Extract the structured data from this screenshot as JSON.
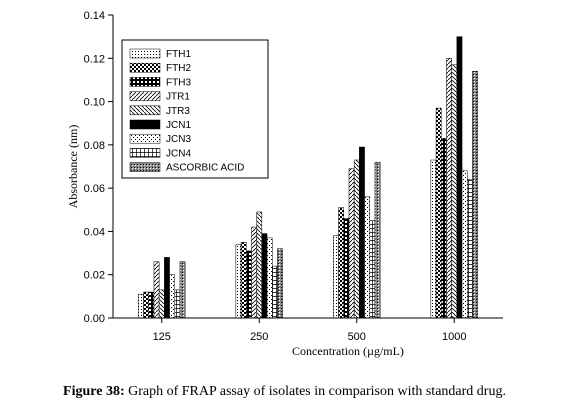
{
  "caption": {
    "label": "Figure 38:",
    "text": " Graph of FRAP assay of isolates in comparison with standard drug."
  },
  "chart_data": {
    "type": "bar",
    "title": "",
    "xlabel": "Concentration (µg/mL)",
    "ylabel": "Absorbance (nm)",
    "ylim": [
      0,
      0.14
    ],
    "yticks": [
      "0.00",
      "0.02",
      "0.04",
      "0.06",
      "0.08",
      "0.10",
      "0.12",
      "0.14"
    ],
    "categories": [
      "125",
      "250",
      "500",
      "1000"
    ],
    "legend_position": "top-left",
    "series": [
      {
        "name": "FTH1",
        "values": [
          0.011,
          0.034,
          0.038,
          0.073
        ]
      },
      {
        "name": "FTH2",
        "values": [
          0.012,
          0.035,
          0.051,
          0.097
        ]
      },
      {
        "name": "FTH3",
        "values": [
          0.012,
          0.031,
          0.046,
          0.083
        ]
      },
      {
        "name": "JTR1",
        "values": [
          0.026,
          0.042,
          0.069,
          0.12
        ]
      },
      {
        "name": "JTR3",
        "values": [
          0.013,
          0.049,
          0.073,
          0.117
        ]
      },
      {
        "name": "JCN1",
        "values": [
          0.028,
          0.039,
          0.079,
          0.13
        ]
      },
      {
        "name": "JCN3",
        "values": [
          0.02,
          0.037,
          0.056,
          0.068
        ]
      },
      {
        "name": "JCN4",
        "values": [
          0.013,
          0.024,
          0.045,
          0.064
        ]
      },
      {
        "name": "ASCORBIC ACID",
        "values": [
          0.026,
          0.032,
          0.072,
          0.114
        ]
      }
    ]
  }
}
